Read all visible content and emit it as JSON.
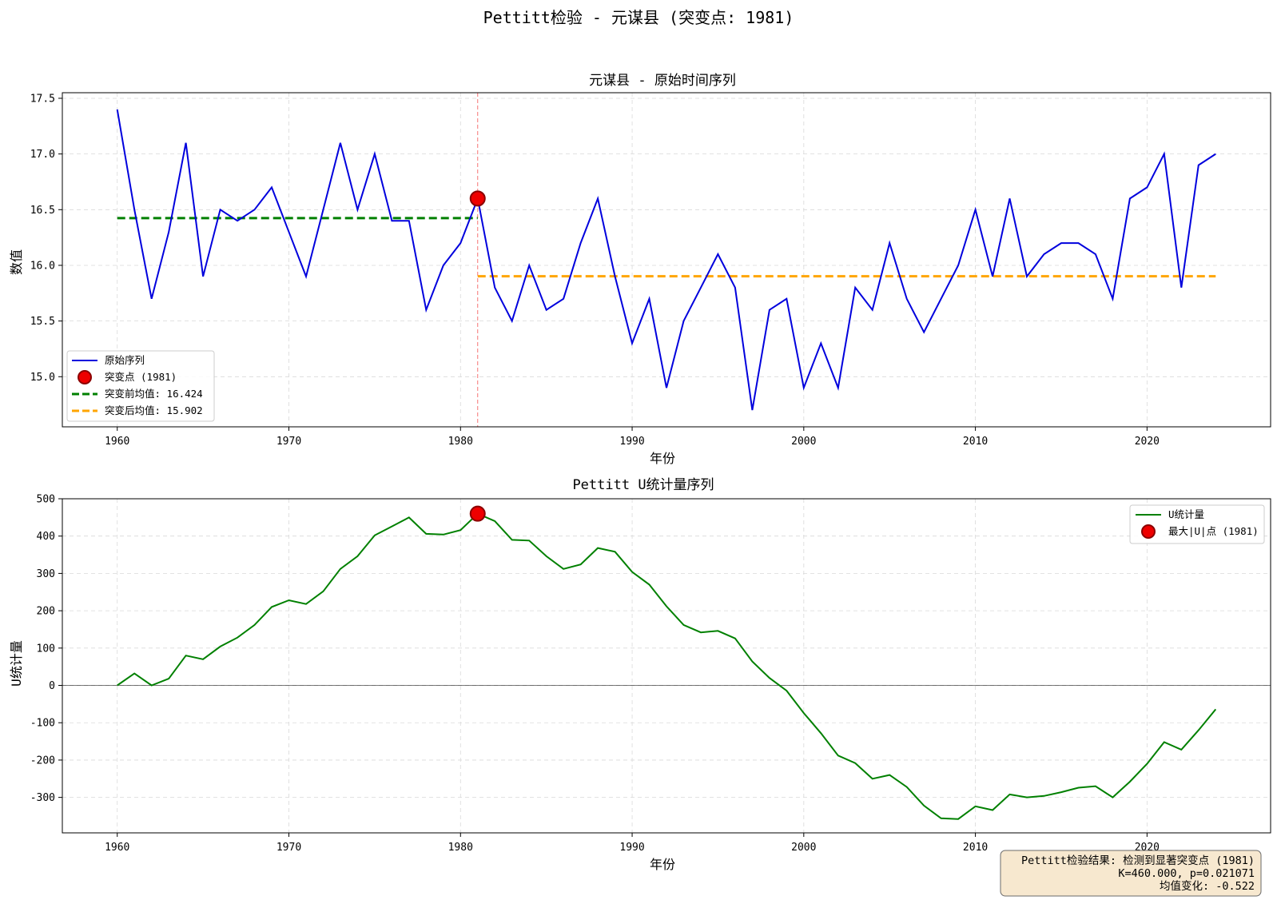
{
  "chart_data": [
    {
      "type": "line",
      "title": "元谋县 - 原始时间序列",
      "xlabel": "年份",
      "ylabel": "数值",
      "xlim": [
        1956.8,
        2027.2
      ],
      "ylim": [
        14.55,
        17.55
      ],
      "xticks": [
        1960,
        1970,
        1980,
        1990,
        2000,
        2010,
        2020
      ],
      "yticks": [
        15.0,
        15.5,
        16.0,
        16.5,
        17.0,
        17.5
      ],
      "grid": true,
      "legend_position": "lower-left",
      "x": [
        1960,
        1961,
        1962,
        1963,
        1964,
        1965,
        1966,
        1967,
        1968,
        1969,
        1970,
        1971,
        1972,
        1973,
        1974,
        1975,
        1976,
        1977,
        1978,
        1979,
        1980,
        1981,
        1982,
        1983,
        1984,
        1985,
        1986,
        1987,
        1988,
        1989,
        1990,
        1991,
        1992,
        1993,
        1994,
        1995,
        1996,
        1997,
        1998,
        1999,
        2000,
        2001,
        2002,
        2003,
        2004,
        2005,
        2006,
        2007,
        2008,
        2009,
        2010,
        2011,
        2012,
        2013,
        2014,
        2015,
        2016,
        2017,
        2018,
        2019,
        2020,
        2021,
        2022,
        2023,
        2024
      ],
      "series": [
        {
          "name": "原始序列",
          "color": "#0000dd",
          "values": [
            17.4,
            16.5,
            15.7,
            16.3,
            17.1,
            15.9,
            16.5,
            16.4,
            16.5,
            16.7,
            16.3,
            15.9,
            16.5,
            17.1,
            16.5,
            17.0,
            16.4,
            16.4,
            15.6,
            16.0,
            16.2,
            16.6,
            15.8,
            15.5,
            16.0,
            15.6,
            15.7,
            16.2,
            16.6,
            15.9,
            15.3,
            15.7,
            14.9,
            15.5,
            15.8,
            16.1,
            15.8,
            14.7,
            15.6,
            15.7,
            14.9,
            15.3,
            14.9,
            15.8,
            15.6,
            16.2,
            15.7,
            15.4,
            15.7,
            16.0,
            16.5,
            15.9,
            16.6,
            15.9,
            16.1,
            16.2,
            16.2,
            16.1,
            15.7,
            16.6,
            16.7,
            17.0,
            15.8,
            16.9,
            17.0
          ]
        }
      ],
      "change_point": {
        "label": "突变点 (1981)",
        "x": 1981,
        "y": 16.6,
        "color": "#ee0000"
      },
      "mean_lines": [
        {
          "label": "突变前均值: 16.424",
          "value": 16.424,
          "x_range": [
            1960,
            1981
          ],
          "color": "#008000"
        },
        {
          "label": "突变后均值: 15.902",
          "value": 15.902,
          "x_range": [
            1981,
            2024
          ],
          "color": "#ffa500"
        }
      ]
    },
    {
      "type": "line",
      "title": "Pettitt U统计量序列",
      "xlabel": "年份",
      "ylabel": "U统计量",
      "xlim": [
        1956.8,
        2027.2
      ],
      "ylim": [
        -395,
        500
      ],
      "xticks": [
        1960,
        1970,
        1980,
        1990,
        2000,
        2010,
        2020
      ],
      "yticks": [
        -300,
        -200,
        -100,
        0,
        100,
        200,
        300,
        400,
        500
      ],
      "grid": true,
      "legend_position": "top-right",
      "x": [
        1960,
        1961,
        1962,
        1963,
        1964,
        1965,
        1966,
        1967,
        1968,
        1969,
        1970,
        1971,
        1972,
        1973,
        1974,
        1975,
        1976,
        1977,
        1978,
        1979,
        1980,
        1981,
        1982,
        1983,
        1984,
        1985,
        1986,
        1987,
        1988,
        1989,
        1990,
        1991,
        1992,
        1993,
        1994,
        1995,
        1996,
        1997,
        1998,
        1999,
        2000,
        2001,
        2002,
        2003,
        2004,
        2005,
        2006,
        2007,
        2008,
        2009,
        2010,
        2011,
        2012,
        2013,
        2014,
        2015,
        2016,
        2017,
        2018,
        2019,
        2020,
        2021,
        2022,
        2023,
        2024
      ],
      "series": [
        {
          "name": "U统计量",
          "color": "#008000",
          "values": [
            0,
            32,
            0,
            18,
            80,
            70,
            104,
            128,
            162,
            210,
            228,
            218,
            252,
            312,
            346,
            402,
            426,
            450,
            406,
            404,
            416,
            460,
            440,
            390,
            388,
            346,
            312,
            324,
            368,
            358,
            304,
            270,
            212,
            162,
            142,
            146,
            126,
            64,
            20,
            -14,
            -74,
            -128,
            -188,
            -208,
            -250,
            -240,
            -272,
            -322,
            -356,
            -358,
            -324,
            -334,
            -292,
            -300,
            -296,
            -286,
            -274,
            -270,
            -300,
            -258,
            -210,
            -152,
            -172,
            -120,
            -64
          ]
        }
      ],
      "max_point": {
        "label": "最大|U|点 (1981)",
        "x": 1981,
        "y": 460,
        "color": "#ee0000"
      }
    }
  ],
  "figure": {
    "title": "Pettitt检验 - 元谋县 (突变点: 1981)"
  },
  "result_box": {
    "line1": "Pettitt检验结果: 检测到显著突变点 (1981)",
    "line2": "K=460.000, p=0.021071",
    "line3": "均值变化: -0.522"
  }
}
